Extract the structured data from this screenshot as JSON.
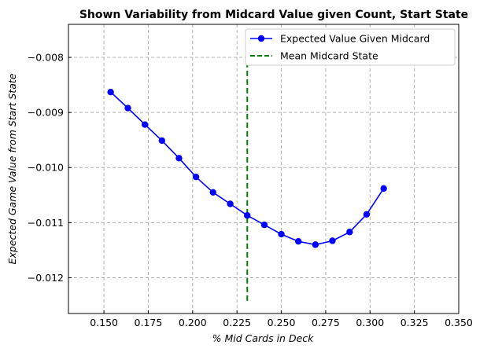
{
  "chart_data": {
    "type": "line",
    "title": "Shown Variability from Midcard Value given Count, Start State",
    "xlabel": "% Mid Cards in Deck",
    "ylabel": "Expected Game Value from Start State",
    "xlim": [
      0.13,
      0.35
    ],
    "ylim": [
      -0.01265,
      -0.0074
    ],
    "xticks": [
      0.15,
      0.175,
      0.2,
      0.225,
      0.25,
      0.275,
      0.3,
      0.325,
      0.35
    ],
    "xtick_labels": [
      "0.150",
      "0.175",
      "0.200",
      "0.225",
      "0.250",
      "0.275",
      "0.300",
      "0.325",
      "0.350"
    ],
    "yticks": [
      -0.008,
      -0.009,
      -0.01,
      -0.011,
      -0.012
    ],
    "ytick_labels": [
      "−0.008",
      "−0.009",
      "−0.010",
      "−0.011",
      "−0.012"
    ],
    "grid": true,
    "legend_position": "top-right",
    "series": [
      {
        "name": "Expected Value Given Midcard",
        "color": "#0000ff",
        "style": "line-markers",
        "x": [
          0.1538,
          0.1635,
          0.1731,
          0.1827,
          0.1923,
          0.2019,
          0.2115,
          0.2212,
          0.2308,
          0.2404,
          0.25,
          0.2596,
          0.2692,
          0.2788,
          0.2885,
          0.2981,
          0.3077
        ],
        "y": [
          -0.00863,
          -0.00892,
          -0.00922,
          -0.00951,
          -0.00983,
          -0.01017,
          -0.01045,
          -0.01066,
          -0.01087,
          -0.01104,
          -0.01121,
          -0.01134,
          -0.0114,
          -0.01133,
          -0.01117,
          -0.01085,
          -0.01038
        ]
      },
      {
        "name": "Mean Midcard State",
        "color": "#008000",
        "style": "dashed-vertical",
        "x": [
          0.2308,
          0.2308
        ],
        "y": [
          -0.01242,
          -0.00808
        ]
      }
    ]
  }
}
